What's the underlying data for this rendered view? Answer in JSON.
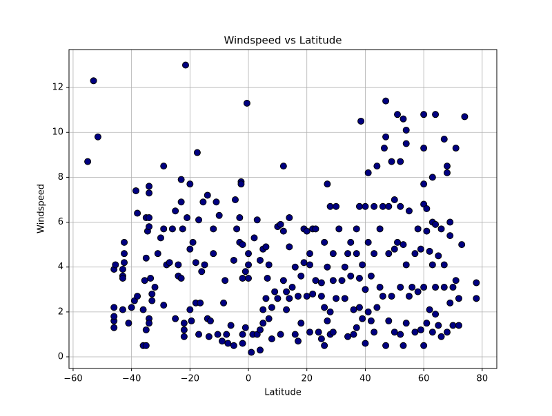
{
  "chart_data": {
    "type": "scatter",
    "title": "Windspeed vs Latitude",
    "x_label": "Latitude",
    "y_label": "Windspeed",
    "color": "#000080",
    "edge_color": "#000000",
    "grid": true,
    "xlim": [
      -61.4,
      85
    ],
    "ylim": [
      -0.52,
      13.69
    ],
    "xticks": [
      {
        "value": -60,
        "label": "−60"
      },
      {
        "value": -40,
        "label": "−40"
      },
      {
        "value": -20,
        "label": "−20"
      },
      0,
      20,
      40,
      60,
      80
    ],
    "yticks": [
      0,
      2,
      4,
      6,
      8,
      10,
      12
    ],
    "x": [
      -55,
      -53,
      -51.5,
      -46,
      -45.5,
      -46,
      -46,
      -46,
      -46,
      -43,
      -42.5,
      -42.5,
      -42.5,
      -43,
      -43,
      -43,
      -41,
      -40,
      -39,
      -38.5,
      -38,
      -38,
      -36,
      -35,
      -36,
      -35.5,
      -35,
      -35,
      -34.5,
      -34,
      -34,
      -34,
      -34,
      -33.5,
      -34,
      -34,
      -35,
      -33,
      -33,
      -32,
      -31,
      -30,
      -29,
      -29,
      -29,
      -28,
      -27,
      -26,
      -25,
      -25,
      -24,
      -24,
      -23,
      -23,
      -23,
      -22.5,
      -22,
      -22,
      -22,
      -21.5,
      -21,
      -20,
      -20,
      -20,
      -19.5,
      -19,
      -18,
      -18,
      -17.5,
      -17,
      -17,
      -16.5,
      -16,
      -15.5,
      -15,
      -14,
      -14,
      -13.5,
      -13,
      -12,
      -12,
      -11,
      -10.5,
      -10,
      -9,
      -8.5,
      -8,
      -7.5,
      -7,
      -6,
      -5,
      -5,
      -4.5,
      -4,
      -3,
      -3,
      -2.5,
      -2.5,
      -2,
      -2,
      -2,
      -2,
      -1,
      -1,
      -0.5,
      0,
      0,
      0,
      1,
      1.5,
      2,
      3,
      3,
      4,
      4,
      4,
      5,
      5,
      5,
      6,
      6,
      6.5,
      7,
      7,
      8,
      8,
      9,
      10,
      10,
      11,
      11,
      12,
      12,
      12,
      13,
      13,
      14,
      14,
      14,
      15,
      16,
      16,
      17,
      17,
      18,
      18,
      19,
      19,
      20,
      20,
      21,
      21,
      21,
      22,
      22,
      23,
      23,
      24,
      25,
      25,
      25,
      26,
      26,
      26,
      27,
      27,
      27,
      28,
      28,
      28,
      29,
      29,
      29,
      30,
      30,
      31,
      32,
      33,
      33,
      34,
      34,
      35,
      35,
      36,
      36,
      37,
      37,
      37,
      38,
      38,
      38,
      38.5,
      39,
      39,
      40,
      40,
      40,
      41,
      41,
      41,
      42,
      42,
      43,
      43,
      43,
      44,
      44,
      45,
      45,
      46,
      46,
      46.5,
      47,
      47,
      47,
      48,
      48,
      48,
      49,
      49,
      50,
      50,
      50,
      51,
      51,
      52,
      52,
      52,
      52,
      53,
      53,
      53,
      54,
      54,
      54,
      54,
      55,
      55,
      56,
      57,
      57,
      58,
      58,
      59,
      59,
      60,
      60,
      60,
      60,
      60,
      60,
      61,
      61,
      61,
      62,
      62,
      63,
      63,
      63,
      63,
      64,
      64,
      64,
      64,
      65,
      65,
      66,
      66,
      67,
      67,
      67,
      68,
      68,
      68,
      69,
      69,
      69,
      70,
      70,
      71,
      71,
      72,
      72,
      73,
      74,
      78,
      78
    ],
    "values": [
      8.7,
      12.3,
      9.8,
      3.9,
      4.1,
      2.2,
      1.6,
      1.3,
      1.8,
      2.1,
      5.1,
      4.6,
      4.2,
      3.9,
      3.6,
      3.5,
      1.5,
      2.2,
      2.5,
      7.4,
      6.4,
      2.7,
      0.5,
      0.5,
      2.1,
      3.4,
      4.4,
      6.2,
      5.6,
      7.3,
      7.6,
      6.2,
      5.8,
      3.5,
      1.7,
      1.5,
      1.2,
      2.8,
      2.5,
      3.1,
      4.6,
      5.3,
      8.5,
      5.7,
      2.3,
      4.1,
      4.2,
      5.7,
      6.5,
      1.7,
      3.6,
      4.1,
      6.9,
      7.9,
      3.5,
      5.7,
      1.2,
      1.5,
      0.9,
      13.0,
      6.2,
      7.7,
      4.8,
      2.1,
      1.6,
      5.1,
      4.2,
      2.4,
      9.1,
      1.0,
      6.1,
      2.4,
      3.8,
      6.9,
      4.1,
      7.2,
      1.7,
      0.9,
      1.6,
      5.7,
      4.6,
      6.9,
      1.0,
      6.3,
      0.7,
      2.4,
      3.4,
      1.0,
      0.6,
      1.4,
      0.5,
      4.3,
      7.0,
      5.7,
      6.2,
      5.1,
      7.8,
      7.7,
      5.0,
      3.5,
      1.0,
      0.6,
      3.8,
      1.3,
      11.3,
      4.6,
      3.5,
      4.1,
      0.2,
      1.0,
      5.3,
      6.1,
      1.0,
      0.3,
      1.2,
      4.3,
      2.1,
      4.8,
      1.5,
      2.6,
      4.9,
      3.5,
      4.1,
      1.7,
      0.8,
      2.2,
      2.9,
      5.8,
      2.6,
      5.9,
      1.0,
      8.5,
      5.6,
      3.4,
      2.9,
      2.1,
      6.2,
      4.9,
      2.6,
      3.1,
      4.0,
      1.0,
      0.7,
      2.7,
      3.6,
      1.5,
      4.2,
      5.7,
      5.6,
      2.7,
      4.6,
      1.1,
      4.1,
      2.8,
      5.7,
      3.4,
      5.7,
      1.1,
      2.7,
      3.3,
      0.8,
      5.1,
      0.5,
      2.2,
      7.7,
      4.0,
      1.6,
      6.7,
      2.0,
      1.0,
      3.4,
      4.6,
      1.1,
      6.7,
      2.6,
      5.7,
      3.4,
      4.0,
      2.6,
      0.9,
      4.6,
      5.1,
      3.6,
      2.1,
      1.0,
      4.6,
      5.7,
      1.3,
      6.7,
      3.5,
      2.2,
      10.5,
      4.1,
      1.7,
      0.6,
      6.7,
      3.0,
      5.1,
      8.2,
      2.0,
      1.6,
      3.6,
      6.7,
      4.6,
      1.1,
      8.5,
      2.2,
      5.7,
      3.1,
      6.7,
      2.7,
      9.3,
      11.4,
      9.8,
      0.5,
      4.6,
      6.7,
      1.6,
      8.7,
      2.7,
      7.0,
      4.8,
      1.1,
      10.8,
      5.1,
      8.7,
      6.7,
      3.1,
      1.0,
      10.6,
      5.0,
      0.5,
      10.1,
      9.5,
      4.1,
      1.5,
      6.5,
      2.7,
      3.1,
      4.6,
      1.1,
      5.7,
      2.9,
      1.2,
      4.8,
      9.3,
      10.8,
      7.7,
      6.8,
      0.5,
      3.1,
      6.6,
      5.6,
      1.5,
      4.7,
      2.1,
      8.0,
      6.0,
      4.1,
      1.1,
      10.8,
      5.9,
      3.1,
      1.9,
      4.5,
      1.4,
      5.7,
      0.9,
      9.7,
      3.1,
      4.1,
      8.5,
      8.2,
      1.1,
      6.0,
      5.4,
      2.4,
      3.1,
      1.4,
      9.3,
      3.4,
      2.6,
      1.4,
      5.0,
      10.7,
      3.3,
      2.6
    ]
  }
}
